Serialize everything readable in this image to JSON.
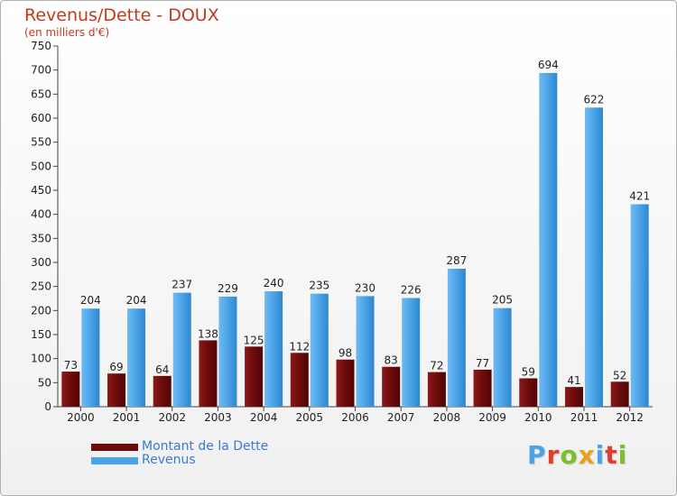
{
  "title": "Revenus/Dette - DOUX",
  "subtitle": "(en milliers d'€)",
  "colors": {
    "dette": "#6e0b0b",
    "revenus": "#4aa3e8",
    "title": "#c23a1a",
    "logo": [
      "#4aa3e8",
      "#e23d2a",
      "#7cbf2a",
      "#e8a21a",
      "#4aa3e8",
      "#e23d2a",
      "#7cbf2a"
    ]
  },
  "chart_data": {
    "type": "bar",
    "title": "Revenus/Dette - DOUX",
    "subtitle": "(en milliers d'€)",
    "categories": [
      "2000",
      "2001",
      "2002",
      "2003",
      "2004",
      "2005",
      "2006",
      "2007",
      "2008",
      "2009",
      "2010",
      "2011",
      "2012"
    ],
    "series": [
      {
        "name": "Montant de la Dette",
        "values": [
          73,
          69,
          64,
          138,
          125,
          112,
          98,
          83,
          72,
          77,
          59,
          41,
          52
        ]
      },
      {
        "name": "Revenus",
        "values": [
          204,
          204,
          237,
          229,
          240,
          235,
          230,
          226,
          287,
          205,
          694,
          622,
          421
        ]
      }
    ],
    "ylim": [
      0,
      750
    ],
    "yticks": [
      0,
      50,
      100,
      150,
      200,
      250,
      300,
      350,
      400,
      450,
      500,
      550,
      600,
      650,
      700,
      750
    ],
    "xlabel": "",
    "ylabel": "",
    "legend": "bottom-left",
    "grid": false
  },
  "legend": {
    "items": [
      {
        "label": "Montant de la Dette"
      },
      {
        "label": "Revenus"
      }
    ]
  },
  "logo": {
    "text": "Proxiti"
  }
}
